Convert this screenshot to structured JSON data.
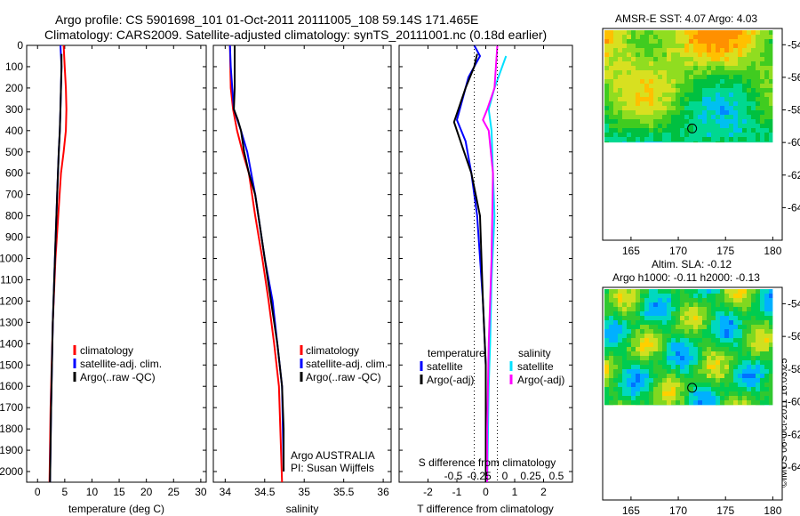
{
  "header": {
    "line1": "Argo profile: CS 5901698_101 01-Oct-2011 20111005_108 59.14S 171.465E",
    "line2": "Climatology: CARS2009. Satellite-adjusted climatology: synTS_20111001.nc (0.18d earlier)"
  },
  "colors": {
    "climatology": "#ff0000",
    "satellite": "#0000ff",
    "argo": "#000000",
    "salinity_satellite": "#00e0ff",
    "salinity_argo": "#ff00ff"
  },
  "chart_data": [
    {
      "type": "line",
      "id": "temperature",
      "xlabel": "temperature (deg C)",
      "xlim": [
        -2,
        31
      ],
      "xticks": [
        0,
        5,
        10,
        15,
        20,
        25,
        30
      ],
      "ylim": [
        0,
        2050
      ],
      "yticks": [
        0,
        100,
        200,
        300,
        400,
        500,
        600,
        700,
        800,
        900,
        1000,
        1100,
        1200,
        1300,
        1400,
        1500,
        1600,
        1700,
        1800,
        1900,
        2000
      ],
      "y_reversed": true,
      "series": [
        {
          "name": "climatology",
          "color": "#ff0000",
          "points": [
            [
              4.8,
              0
            ],
            [
              5,
              100
            ],
            [
              5.2,
              200
            ],
            [
              5.3,
              300
            ],
            [
              5.2,
              400
            ],
            [
              4.8,
              500
            ],
            [
              4.3,
              600
            ],
            [
              3.8,
              800
            ],
            [
              3.3,
              1000
            ],
            [
              2.8,
              1300
            ],
            [
              2.4,
              1700
            ],
            [
              2.2,
              2050
            ]
          ]
        },
        {
          "name": "satellite-adj. clim.",
          "color": "#0000ff",
          "points": [
            [
              4.2,
              0
            ],
            [
              4.4,
              100
            ],
            [
              4.3,
              200
            ],
            [
              4.2,
              300
            ],
            [
              4.1,
              400
            ],
            [
              3.9,
              500
            ],
            [
              3.6,
              700
            ],
            [
              3.2,
              1000
            ],
            [
              2.8,
              1300
            ],
            [
              2.5,
              1700
            ],
            [
              2.3,
              2050
            ]
          ]
        },
        {
          "name": "Argo(..raw -QC)",
          "color": "#000000",
          "points": [
            [
              4.4,
              40
            ],
            [
              4.4,
              100
            ],
            [
              4.3,
              200
            ],
            [
              4.2,
              300
            ],
            [
              4.1,
              400
            ],
            [
              3.9,
              500
            ],
            [
              3.6,
              700
            ],
            [
              3.2,
              1000
            ],
            [
              2.8,
              1300
            ],
            [
              2.5,
              1700
            ],
            [
              2.3,
              2050
            ]
          ]
        }
      ],
      "legend": [
        "climatology",
        "satellite-adj. clim.",
        "Argo(..raw -QC)"
      ]
    },
    {
      "type": "line",
      "id": "salinity",
      "xlabel": "salinity",
      "xlim": [
        33.85,
        36.1
      ],
      "xticks": [
        34,
        34.5,
        35,
        35.5,
        36
      ],
      "ylim": [
        0,
        2050
      ],
      "y_reversed": true,
      "series": [
        {
          "name": "climatology",
          "color": "#ff0000",
          "points": [
            [
              34.06,
              0
            ],
            [
              34.07,
              200
            ],
            [
              34.1,
              300
            ],
            [
              34.15,
              400
            ],
            [
              34.22,
              500
            ],
            [
              34.3,
              600
            ],
            [
              34.38,
              800
            ],
            [
              34.47,
              1000
            ],
            [
              34.55,
              1200
            ],
            [
              34.62,
              1400
            ],
            [
              34.68,
              1600
            ],
            [
              34.72,
              2050
            ]
          ]
        },
        {
          "name": "satellite-adj. clim.",
          "color": "#0000ff",
          "points": [
            [
              34.06,
              0
            ],
            [
              34.07,
              100
            ],
            [
              34.09,
              200
            ],
            [
              34.11,
              300
            ],
            [
              34.2,
              400
            ],
            [
              34.28,
              500
            ],
            [
              34.38,
              700
            ],
            [
              34.5,
              1000
            ],
            [
              34.6,
              1200
            ],
            [
              34.66,
              1400
            ],
            [
              34.72,
              1600
            ],
            [
              34.74,
              2000
            ]
          ]
        },
        {
          "name": "Argo(..raw -QC)",
          "color": "#000000",
          "points": [
            [
              34.12,
              0
            ],
            [
              34.12,
              200
            ],
            [
              34.11,
              300
            ],
            [
              34.16,
              350
            ],
            [
              34.2,
              400
            ],
            [
              34.24,
              500
            ],
            [
              34.3,
              600
            ],
            [
              34.38,
              700
            ],
            [
              34.42,
              800
            ],
            [
              34.5,
              1000
            ],
            [
              34.58,
              1200
            ],
            [
              34.66,
              1400
            ],
            [
              34.72,
              1600
            ],
            [
              34.74,
              1800
            ],
            [
              34.74,
              2000
            ]
          ]
        }
      ],
      "legend": [
        "climatology",
        "satellite-adj. clim.",
        "Argo(..raw -QC)"
      ],
      "annotation": [
        "Argo AUSTRALIA",
        "PI: Susan Wijffels"
      ]
    },
    {
      "type": "line",
      "id": "difference",
      "xlabel": "T difference from climatology",
      "xlabel2": "S difference from climatology",
      "xlim": [
        -3,
        3
      ],
      "xticks": [
        -2,
        -1,
        0,
        1,
        2
      ],
      "x2ticks": [
        "-0.5",
        "-0.25",
        "0",
        "0.25",
        "0.5"
      ],
      "ylim": [
        0,
        2050
      ],
      "y_reversed": true,
      "legend_left_title": "temperature",
      "legend_right_title": "salinity",
      "legend_left": [
        "satellite",
        "Argo(-adj)"
      ],
      "legend_right": [
        "satellite",
        "Argo(-adj)"
      ],
      "series": [
        {
          "name": "temperature satellite",
          "color": "#0000ff",
          "points": [
            [
              -0.4,
              0
            ],
            [
              -0.2,
              50
            ],
            [
              -0.6,
              150
            ],
            [
              -0.9,
              300
            ],
            [
              -1.0,
              350
            ],
            [
              -0.7,
              450
            ],
            [
              -0.5,
              600
            ],
            [
              -0.3,
              800
            ],
            [
              -0.1,
              1200
            ],
            [
              0,
              1500
            ],
            [
              0,
              2050
            ]
          ]
        },
        {
          "name": "temperature Argo(-adj)",
          "color": "#000000",
          "points": [
            [
              -0.3,
              40
            ],
            [
              -0.4,
              100
            ],
            [
              -0.7,
              200
            ],
            [
              -0.9,
              280
            ],
            [
              -1.1,
              360
            ],
            [
              -0.8,
              480
            ],
            [
              -0.5,
              600
            ],
            [
              -0.2,
              800
            ],
            [
              -0.1,
              1200
            ],
            [
              0,
              1500
            ],
            [
              0,
              2050
            ]
          ]
        },
        {
          "name": "salinity satellite",
          "color": "#00e0ff",
          "points": [
            [
              0.7,
              50
            ],
            [
              0.3,
              200
            ],
            [
              0.1,
              300
            ],
            [
              0.2,
              400
            ],
            [
              0.25,
              600
            ],
            [
              0.3,
              800
            ],
            [
              0.2,
              1100
            ],
            [
              0.15,
              1400
            ],
            [
              0.1,
              1600
            ],
            [
              0.05,
              2050
            ]
          ]
        },
        {
          "name": "salinity Argo(-adj)",
          "color": "#ff00ff",
          "points": [
            [
              0.4,
              0
            ],
            [
              0.3,
              200
            ],
            [
              0.05,
              300
            ],
            [
              -0.1,
              350
            ],
            [
              0.1,
              400
            ],
            [
              0.25,
              600
            ],
            [
              0.2,
              1000
            ],
            [
              0.1,
              1400
            ],
            [
              0.05,
              1800
            ],
            [
              0.05,
              2050
            ]
          ]
        }
      ]
    },
    {
      "type": "heatmap",
      "id": "sst-map",
      "title": "AMSR-E SST: 4.07 Argo: 4.03",
      "xlim": [
        162,
        181
      ],
      "ylim": [
        -66,
        -53
      ],
      "xticks": [
        165,
        170,
        175,
        180
      ],
      "yticks": [
        -54,
        -56,
        -58,
        -60,
        -62,
        -64
      ],
      "marker": [
        171.465,
        -59.14
      ]
    },
    {
      "type": "heatmap",
      "id": "sla-map",
      "title": "Altim. SLA: -0.12",
      "subtitle": "Argo h1000: -0.11 h2000: -0.13",
      "xlim": [
        162,
        181
      ],
      "ylim": [
        -66,
        -53
      ],
      "xticks": [
        165,
        170,
        175,
        180
      ],
      "yticks": [
        -54,
        -56,
        -58,
        -60,
        -62,
        -64
      ],
      "marker": [
        171.465,
        -59.14
      ]
    }
  ],
  "footer": {
    "credit": "©IMOS 06-Oct-2011 16:03:25"
  }
}
